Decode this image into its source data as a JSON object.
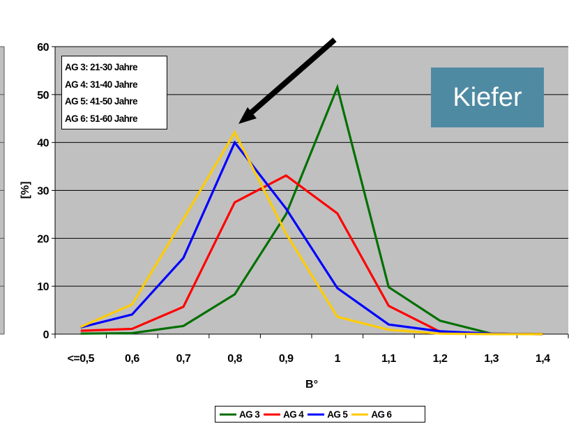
{
  "chart_data": {
    "type": "line",
    "title": "",
    "xlabel": "B°",
    "ylabel": "[%]",
    "ylim": [
      0,
      60
    ],
    "yticks": [
      "0",
      "10",
      "20",
      "30",
      "40",
      "50",
      "60"
    ],
    "categories": [
      "<=0,5",
      "0,6",
      "0,7",
      "0,8",
      "0,9",
      "1",
      "1,1",
      "1,2",
      "1,3",
      "1,4"
    ],
    "grid": true,
    "legend_position": "bottom",
    "series": [
      {
        "name": "AG 3",
        "color": "#007000",
        "values": [
          0.1,
          0.2,
          1.7,
          8.3,
          25.0,
          51.5,
          9.8,
          2.8,
          0.1,
          0.0
        ]
      },
      {
        "name": "AG 4",
        "color": "#ff0000",
        "values": [
          0.7,
          1.1,
          5.7,
          27.5,
          33.1,
          25.2,
          5.9,
          0.5,
          0.1,
          0.0
        ]
      },
      {
        "name": "AG 5",
        "color": "#0000ff",
        "values": [
          1.4,
          4.1,
          15.9,
          40.0,
          26.2,
          9.6,
          2.0,
          0.6,
          0.1,
          0.0
        ]
      },
      {
        "name": "AG 6",
        "color": "#ffcc00",
        "values": [
          1.5,
          6.2,
          24.0,
          42.1,
          21.0,
          3.6,
          0.9,
          0.1,
          0.0,
          0.0
        ]
      }
    ]
  },
  "info_box": {
    "lines": [
      "AG 3: 21-30 Jahre",
      "AG 4: 31-40 Jahre",
      "AG 5: 41-50 Jahre",
      "AG 6: 51-60 Jahre"
    ]
  },
  "species_label": "Kiefer",
  "colors": {
    "plot_bg": "#c0c0c0",
    "species_box": "#4f8aa3",
    "arrow": "#000000"
  }
}
